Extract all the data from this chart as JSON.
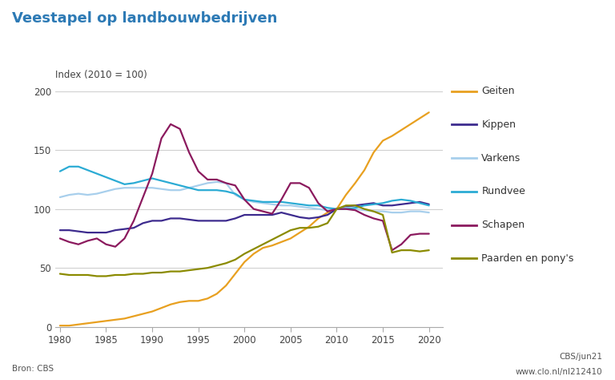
{
  "title": "Veestapel op landbouwbedrijven",
  "index_label": "Index (2010 = 100)",
  "source_left": "Bron: CBS",
  "source_right_top": "CBS/jun21",
  "source_right_bot": "www.clo.nl/nl212410",
  "bg_color": "#ffffff",
  "plot_bg_color": "#ffffff",
  "title_color": "#2D7AB5",
  "years": [
    1980,
    1981,
    1982,
    1983,
    1984,
    1985,
    1986,
    1987,
    1988,
    1989,
    1990,
    1991,
    1992,
    1993,
    1994,
    1995,
    1996,
    1997,
    1998,
    1999,
    2000,
    2001,
    2002,
    2003,
    2004,
    2005,
    2006,
    2007,
    2008,
    2009,
    2010,
    2011,
    2012,
    2013,
    2014,
    2015,
    2016,
    2017,
    2018,
    2019,
    2020
  ],
  "series": {
    "Geiten": {
      "color": "#E8A020",
      "values": [
        1,
        1,
        2,
        3,
        4,
        5,
        6,
        7,
        9,
        11,
        13,
        16,
        19,
        21,
        22,
        22,
        24,
        28,
        35,
        45,
        55,
        62,
        67,
        69,
        72,
        75,
        80,
        85,
        92,
        97,
        100,
        112,
        122,
        133,
        148,
        158,
        162,
        167,
        172,
        177,
        182
      ]
    },
    "Kippen": {
      "color": "#3D2B8E",
      "values": [
        82,
        82,
        81,
        80,
        80,
        80,
        82,
        83,
        84,
        88,
        90,
        90,
        92,
        92,
        91,
        90,
        90,
        90,
        90,
        92,
        95,
        95,
        95,
        95,
        97,
        95,
        93,
        92,
        93,
        95,
        100,
        102,
        103,
        104,
        105,
        103,
        103,
        104,
        105,
        106,
        104
      ]
    },
    "Varkens": {
      "color": "#A8CFEC",
      "values": [
        110,
        112,
        113,
        112,
        113,
        115,
        117,
        118,
        118,
        118,
        118,
        117,
        116,
        116,
        118,
        120,
        122,
        123,
        122,
        112,
        108,
        106,
        105,
        104,
        103,
        103,
        102,
        101,
        100,
        99,
        100,
        101,
        100,
        99,
        98,
        98,
        97,
        97,
        98,
        98,
        97
      ]
    },
    "Rundvee": {
      "color": "#2BABD4",
      "values": [
        132,
        136,
        136,
        133,
        130,
        127,
        124,
        121,
        122,
        124,
        126,
        124,
        122,
        120,
        118,
        116,
        116,
        116,
        115,
        113,
        108,
        107,
        106,
        106,
        106,
        105,
        104,
        103,
        103,
        101,
        100,
        100,
        101,
        103,
        104,
        105,
        107,
        108,
        107,
        105,
        103
      ]
    },
    "Schapen": {
      "color": "#8B1A5E",
      "values": [
        75,
        72,
        70,
        73,
        75,
        70,
        68,
        75,
        90,
        110,
        130,
        160,
        172,
        168,
        148,
        132,
        125,
        125,
        122,
        120,
        108,
        100,
        98,
        96,
        108,
        122,
        122,
        118,
        105,
        98,
        100,
        100,
        99,
        95,
        92,
        90,
        65,
        70,
        78,
        79,
        79
      ]
    },
    "Paarden en pony's": {
      "color": "#8B8B00",
      "values": [
        45,
        44,
        44,
        44,
        43,
        43,
        44,
        44,
        45,
        45,
        46,
        46,
        47,
        47,
        48,
        49,
        50,
        52,
        54,
        57,
        62,
        66,
        70,
        74,
        78,
        82,
        84,
        84,
        85,
        88,
        100,
        103,
        103,
        100,
        98,
        95,
        63,
        65,
        65,
        64,
        65
      ]
    }
  },
  "xlim": [
    1979.5,
    2021.5
  ],
  "ylim": [
    0,
    200
  ],
  "yticks": [
    0,
    50,
    100,
    150,
    200
  ],
  "xticks": [
    1980,
    1985,
    1990,
    1995,
    2000,
    2005,
    2010,
    2015,
    2020
  ],
  "grid_color": "#d0d0d0",
  "legend_order": [
    "Geiten",
    "Kippen",
    "Varkens",
    "Rundvee",
    "Schapen",
    "Paarden en pony's"
  ]
}
